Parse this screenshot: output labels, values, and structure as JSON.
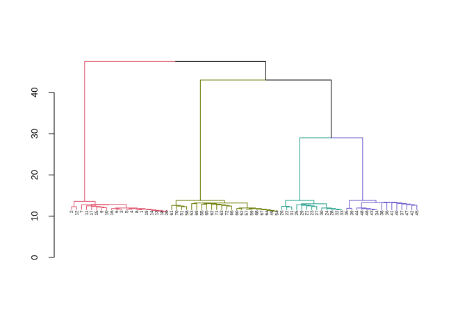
{
  "chart_data": {
    "type": "dendrogram",
    "title": "",
    "xlabel": "",
    "ylabel": "",
    "ylim": [
      0,
      50
    ],
    "yticks": [
      0,
      10,
      20,
      30,
      40
    ],
    "grid": false,
    "leaf_labels": [
      "2",
      "12",
      "7",
      "11",
      "17",
      "15",
      "9",
      "10",
      "16",
      "6",
      "3",
      "5",
      "4",
      "8",
      "1",
      "19",
      "14",
      "13",
      "18",
      "20",
      "61",
      "70",
      "51",
      "58",
      "53",
      "69",
      "55",
      "65",
      "62",
      "71",
      "63",
      "72",
      "66",
      "60",
      "52",
      "57",
      "59",
      "68",
      "67",
      "64",
      "49",
      "54",
      "26",
      "22",
      "31",
      "25",
      "29",
      "21",
      "23",
      "27",
      "30",
      "24",
      "28",
      "32",
      "33",
      "35",
      "39",
      "44",
      "48",
      "46",
      "43",
      "34",
      "38",
      "36",
      "41",
      "40",
      "37",
      "47",
      "42",
      "45"
    ],
    "clusters": [
      {
        "color": "#DF536B",
        "leaves": "2–20"
      },
      {
        "color": "#6B7A00",
        "leaves": "61–54"
      },
      {
        "color": "#1F9E89",
        "leaves": "26–33"
      },
      {
        "color": "#6A5ACD",
        "leaves": "35–45"
      }
    ],
    "merges": [
      {
        "name": "root",
        "height": 47.5,
        "left": "cluster-1",
        "right": "node-2-3-4",
        "color": "#000000"
      },
      {
        "name": "node-2-3-4",
        "height": 43.0,
        "left": "cluster-2",
        "right": "node-3-4",
        "color": "#000000"
      },
      {
        "name": "node-3-4",
        "height": 29.0,
        "left": "cluster-3",
        "right": "cluster-4",
        "color": "#000000"
      },
      {
        "name": "cluster-1",
        "height": 13.6,
        "color": "#DF536B"
      },
      {
        "name": "cluster-2",
        "height": 13.8,
        "color": "#6B7A00"
      },
      {
        "name": "cluster-3",
        "height": 13.8,
        "color": "#1F9E89"
      },
      {
        "name": "cluster-4",
        "height": 13.8,
        "color": "#6A5ACD"
      }
    ]
  }
}
